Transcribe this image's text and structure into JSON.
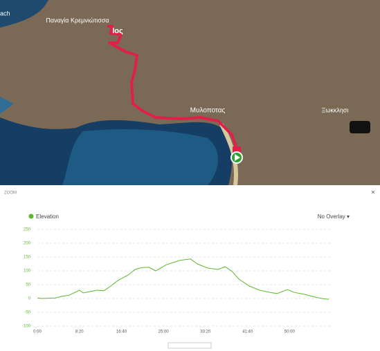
{
  "map": {
    "labels": [
      "Παναγία Κρεμνιώτισσα",
      "Ιος",
      "Μυλοποτας",
      "Ξωκκλησι",
      "ach"
    ]
  },
  "panel": {
    "zoom_label": "ZOOM",
    "close": "×",
    "overlay": "No Overlay ▾"
  },
  "chart_data": {
    "type": "line",
    "x": [
      0,
      50,
      215,
      297,
      379,
      503,
      544,
      626,
      709,
      791,
      873,
      956,
      1080,
      1162,
      1245,
      1327,
      1409,
      1533,
      1698,
      1821,
      1904,
      2027,
      2151,
      2233,
      2316,
      2398,
      2522,
      2645,
      2769,
      2851,
      2975,
      3057,
      3180,
      3304,
      3386,
      3468
    ],
    "series": [
      {
        "name": "Elevation",
        "color": "#5cb82e",
        "values": [
          2,
          0,
          2,
          8,
          12,
          30,
          20,
          25,
          30,
          28,
          45,
          65,
          85,
          105,
          112,
          113,
          100,
          122,
          138,
          143,
          125,
          110,
          105,
          115,
          98,
          70,
          45,
          30,
          22,
          18,
          32,
          22,
          15,
          5,
          0,
          -3
        ]
      }
    ],
    "xlim": [
      0,
      3500
    ],
    "xticks": [
      {
        "value": 0,
        "label": "0:00"
      },
      {
        "value": 500,
        "label": "8:20"
      },
      {
        "value": 1000,
        "label": "16:40"
      },
      {
        "value": 1500,
        "label": "25:00"
      },
      {
        "value": 2000,
        "label": "33:20"
      },
      {
        "value": 2500,
        "label": "41:40"
      },
      {
        "value": 3000,
        "label": "50:00"
      }
    ],
    "ylim": [
      -100,
      250
    ],
    "yticks": [
      -100,
      -50,
      0,
      50,
      100,
      150,
      200,
      250
    ],
    "grid": true
  }
}
